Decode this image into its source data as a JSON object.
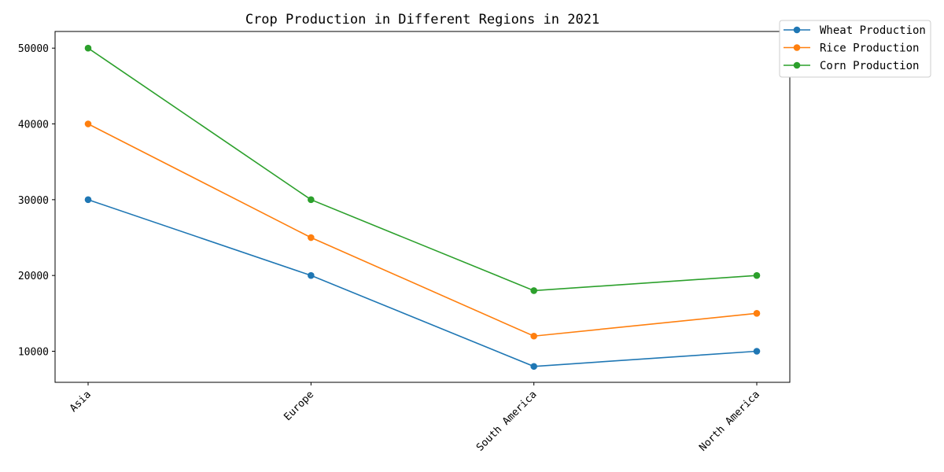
{
  "chart_data": {
    "type": "line",
    "title": "Crop Production in Different Regions in 2021",
    "xlabel": "",
    "ylabel": "",
    "categories": [
      "Asia",
      "Europe",
      "South America",
      "North America"
    ],
    "series": [
      {
        "name": "Wheat Production",
        "values": [
          30000,
          20000,
          8000,
          10000
        ],
        "color": "#1f77b4"
      },
      {
        "name": "Rice Production",
        "values": [
          40000,
          25000,
          12000,
          15000
        ],
        "color": "#ff7f0e"
      },
      {
        "name": "Corn Production",
        "values": [
          50000,
          30000,
          18000,
          20000
        ],
        "color": "#2ca02c"
      }
    ],
    "ylim": [
      5900,
      52200
    ],
    "yticks": [
      10000,
      20000,
      30000,
      40000,
      50000
    ],
    "grid": false,
    "legend_position": "upper-right-outside",
    "marker": "circle"
  }
}
